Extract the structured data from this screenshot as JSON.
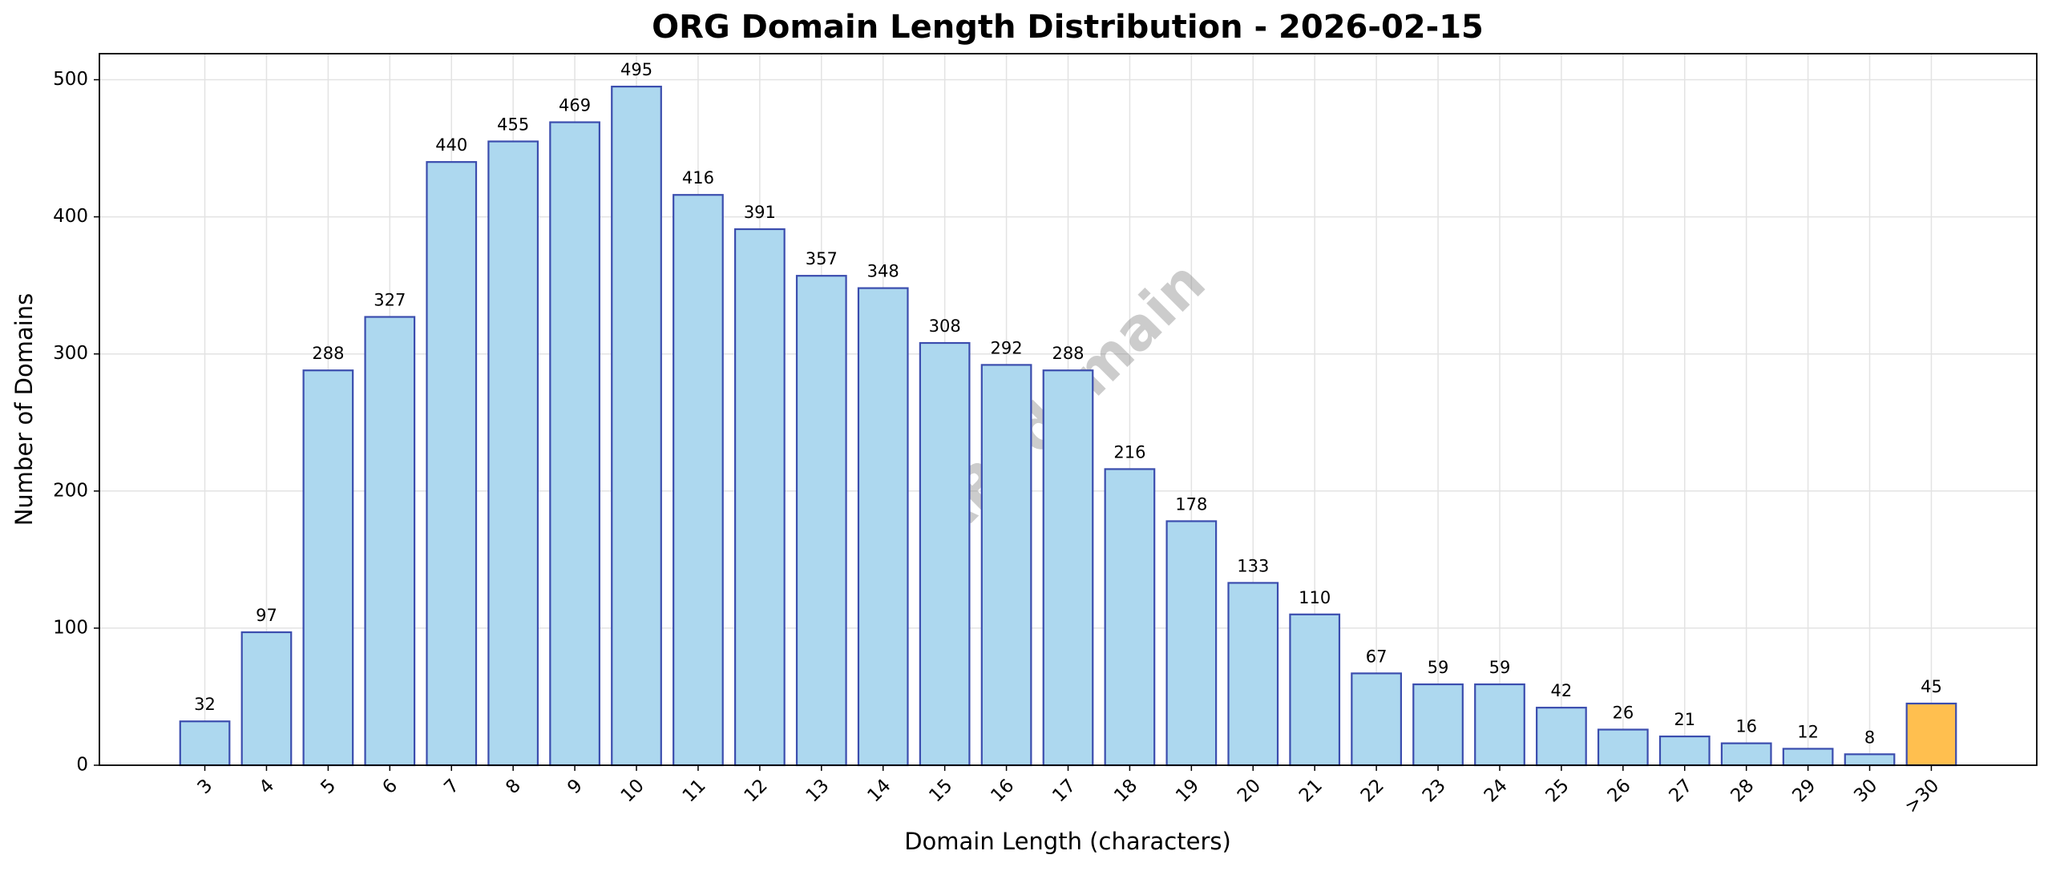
{
  "chart_data": {
    "type": "bar",
    "title": "ORG Domain Length Distribution - 2026-02-15",
    "x_label": "Domain Length (characters)",
    "y_label": "Number of Domains",
    "watermark": "ABTdomain",
    "categories": [
      "3",
      "4",
      "5",
      "6",
      "7",
      "8",
      "9",
      "10",
      "11",
      "12",
      "13",
      "14",
      "15",
      "16",
      "17",
      "18",
      "19",
      "20",
      "21",
      "22",
      "23",
      "24",
      "25",
      "26",
      "27",
      "28",
      "29",
      "30",
      ">30"
    ],
    "values": [
      32,
      97,
      288,
      327,
      440,
      455,
      469,
      495,
      416,
      391,
      357,
      348,
      308,
      292,
      288,
      216,
      178,
      133,
      110,
      67,
      59,
      59,
      42,
      26,
      21,
      16,
      12,
      8,
      45
    ],
    "colors": [
      "#add8ef",
      "#add8ef",
      "#add8ef",
      "#add8ef",
      "#add8ef",
      "#add8ef",
      "#add8ef",
      "#add8ef",
      "#add8ef",
      "#add8ef",
      "#add8ef",
      "#add8ef",
      "#add8ef",
      "#add8ef",
      "#add8ef",
      "#add8ef",
      "#add8ef",
      "#add8ef",
      "#add8ef",
      "#add8ef",
      "#add8ef",
      "#add8ef",
      "#add8ef",
      "#add8ef",
      "#add8ef",
      "#add8ef",
      "#add8ef",
      "#add8ef",
      "#ffbf4f"
    ],
    "edge_color": "#3b4dae",
    "ylim": [
      0,
      519
    ],
    "yticks": [
      0,
      100,
      200,
      300,
      400,
      500
    ],
    "grid": true
  }
}
